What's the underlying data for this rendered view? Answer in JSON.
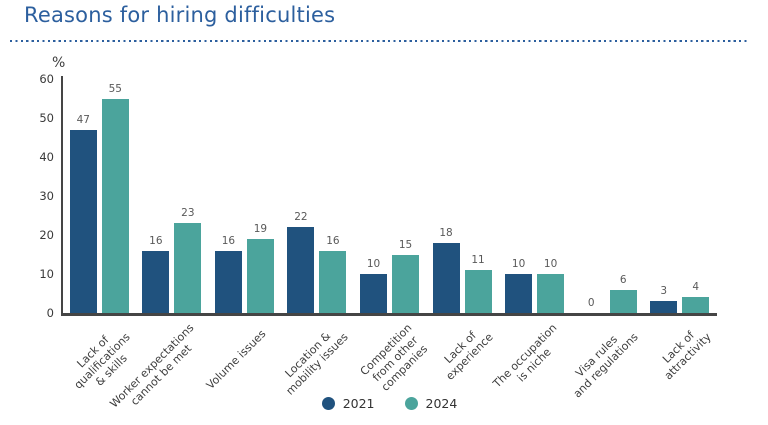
{
  "header": {
    "title": "Reasons for hiring difficulties"
  },
  "colors": {
    "title_blue": "#2c5f9e",
    "dotted_divider": "#2c5f9e",
    "axis": "#454545",
    "tick_label": "#3a3a3a",
    "value_label": "#595959",
    "series_2021": "#20527e",
    "series_2024": "#4ba49c"
  },
  "chart_data": {
    "type": "bar",
    "title": "Reasons for hiring difficulties",
    "xlabel": "",
    "ylabel": "%",
    "ylim": [
      0,
      60
    ],
    "yticks": [
      0,
      10,
      20,
      30,
      40,
      50,
      60
    ],
    "grid": false,
    "legend_position": "bottom",
    "value_labels": true,
    "categories": [
      "Lack of\nqualifications\n& skills",
      "Worker expectations\ncannot be met",
      "Volume issues",
      "Location &\nmobility issues",
      "Competition\nfrom other\ncompanies",
      "Lack of\nexperience",
      "The occupation\nis niche",
      "Visa rules\nand regulations",
      "Lack of\nattractivity"
    ],
    "series": [
      {
        "name": "2021",
        "color": "#20527e",
        "values": [
          47,
          16,
          16,
          22,
          10,
          18,
          10,
          0,
          3
        ]
      },
      {
        "name": "2024",
        "color": "#4ba49c",
        "values": [
          55,
          23,
          19,
          16,
          15,
          11,
          10,
          6,
          4
        ]
      }
    ]
  }
}
